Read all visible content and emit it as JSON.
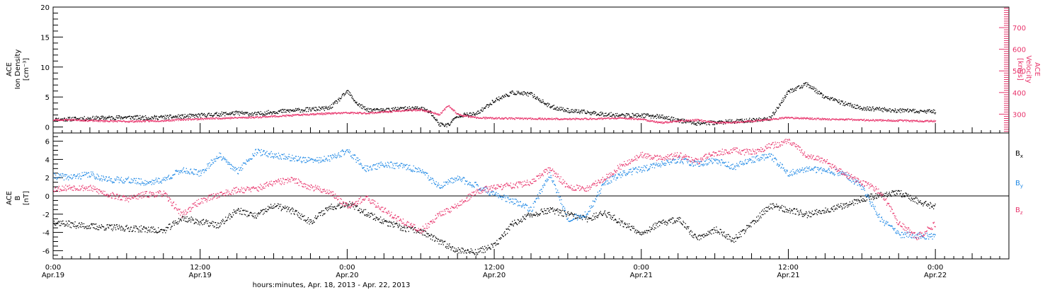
{
  "colors": {
    "axis": "#000000",
    "density": "#000000",
    "velocity": "#e8336b",
    "bx": "#000000",
    "by": "#1e88e5",
    "bz": "#e8336b"
  },
  "chart_data": [
    {
      "type": "scatter",
      "panel": "top",
      "ylabel_lines": [
        "ACE",
        "Ion Density",
        "[cm⁻³]"
      ],
      "ylim": [
        -1,
        20
      ],
      "yticks": [
        0,
        5,
        10,
        15,
        20
      ],
      "right_axis": {
        "label_lines": [
          "ACE",
          "Velocity",
          "[km/s]"
        ],
        "ylim": [
          213,
          795
        ],
        "yticks": [
          300,
          400,
          500,
          600,
          700
        ],
        "color": "#e8336b"
      },
      "series": [
        {
          "name": "Ion Density",
          "axis": "left",
          "color": "#000000",
          "x": [
            0,
            2,
            4,
            6,
            8,
            10,
            12,
            14,
            16,
            18,
            20,
            22,
            24,
            26,
            28,
            30,
            31,
            32,
            33,
            34,
            35,
            36,
            38,
            40,
            41,
            42,
            43,
            44,
            46,
            48,
            50,
            52,
            54,
            56,
            58,
            60,
            62,
            64,
            66,
            68,
            70,
            72,
            74,
            76,
            78,
            80,
            82,
            84,
            86,
            88,
            90,
            92,
            94,
            96
          ],
          "y": [
            1.3,
            1.4,
            1.5,
            1.6,
            1.7,
            1.6,
            1.7,
            1.8,
            2.0,
            2.2,
            2.4,
            2.2,
            2.6,
            2.8,
            3.0,
            3.2,
            4.5,
            6.0,
            4.0,
            3.0,
            2.8,
            2.9,
            3.1,
            3.2,
            2.5,
            0.5,
            0.4,
            2.0,
            2.2,
            4.5,
            5.8,
            5.5,
            3.5,
            2.8,
            2.5,
            2.2,
            2.0,
            2.0,
            1.8,
            1.2,
            0.7,
            0.8,
            1.0,
            1.2,
            1.5,
            6.0,
            7.2,
            5.0,
            4.0,
            3.2,
            3.0,
            2.8,
            2.7,
            2.6
          ]
        },
        {
          "name": "Velocity",
          "axis": "right",
          "color": "#e8336b",
          "x": [
            0,
            2,
            4,
            6,
            8,
            10,
            12,
            14,
            16,
            18,
            20,
            22,
            24,
            26,
            28,
            30,
            32,
            34,
            36,
            38,
            40,
            41,
            42,
            43,
            44,
            46,
            48,
            50,
            52,
            54,
            56,
            58,
            60,
            62,
            64,
            66,
            68,
            70,
            72,
            74,
            76,
            78,
            80,
            82,
            84,
            86,
            88,
            90,
            92,
            94,
            96
          ],
          "y": [
            275,
            276,
            272,
            270,
            268,
            270,
            272,
            277,
            280,
            283,
            285,
            288,
            292,
            296,
            302,
            305,
            308,
            306,
            312,
            318,
            322,
            312,
            300,
            342,
            300,
            285,
            283,
            282,
            281,
            280,
            279,
            280,
            282,
            283,
            279,
            262,
            270,
            275,
            262,
            264,
            270,
            278,
            286,
            282,
            279,
            277,
            275,
            273,
            272,
            270,
            270
          ]
        }
      ]
    },
    {
      "type": "scatter",
      "panel": "bottom",
      "ylabel_lines": [
        "ACE",
        "B",
        "[nT]"
      ],
      "ylim": [
        -6.9,
        6.9
      ],
      "yticks": [
        -6,
        -4,
        -2,
        0,
        2,
        4,
        6
      ],
      "legend": {
        "placement": "right",
        "entries": [
          {
            "base": "B",
            "sub": "x",
            "color": "#000000"
          },
          {
            "base": "B",
            "sub": "y",
            "color": "#1e88e5"
          },
          {
            "base": "B",
            "sub": "z",
            "color": "#e8336b"
          }
        ]
      },
      "series": [
        {
          "name": "Bx",
          "color": "#000000",
          "x": [
            0,
            2,
            4,
            6,
            8,
            10,
            12,
            14,
            16,
            18,
            20,
            22,
            24,
            26,
            28,
            30,
            32,
            34,
            36,
            38,
            40,
            42,
            44,
            46,
            48,
            50,
            52,
            54,
            56,
            58,
            60,
            62,
            64,
            66,
            68,
            70,
            72,
            74,
            76,
            78,
            80,
            82,
            84,
            86,
            88,
            90,
            92,
            94,
            96
          ],
          "y": [
            -2.8,
            -3.1,
            -3.3,
            -3.4,
            -3.5,
            -3.6,
            -3.8,
            -2.4,
            -2.8,
            -3.2,
            -1.5,
            -2.2,
            -1.0,
            -1.6,
            -2.8,
            -1.2,
            -0.8,
            -1.8,
            -2.8,
            -3.5,
            -3.8,
            -5.0,
            -5.9,
            -6.1,
            -5.4,
            -3.0,
            -2.0,
            -1.5,
            -2.0,
            -2.5,
            -1.8,
            -3.0,
            -4.0,
            -3.0,
            -2.5,
            -4.6,
            -3.6,
            -4.8,
            -3.0,
            -1.0,
            -1.5,
            -2.0,
            -1.5,
            -1.0,
            -0.3,
            0.2,
            0.4,
            -0.5,
            -1.2
          ]
        },
        {
          "name": "By",
          "color": "#1e88e5",
          "x": [
            0,
            2,
            4,
            6,
            8,
            10,
            12,
            14,
            16,
            18,
            20,
            22,
            24,
            26,
            28,
            30,
            32,
            34,
            36,
            38,
            40,
            42,
            44,
            46,
            48,
            50,
            52,
            54,
            56,
            58,
            60,
            62,
            64,
            66,
            68,
            70,
            72,
            74,
            76,
            78,
            80,
            82,
            84,
            86,
            88,
            90,
            92,
            94,
            96
          ],
          "y": [
            2.2,
            2.1,
            2.4,
            1.8,
            1.8,
            1.5,
            1.8,
            2.9,
            2.5,
            4.5,
            2.7,
            4.9,
            4.5,
            4.2,
            3.9,
            4.1,
            5.0,
            3.0,
            3.5,
            3.3,
            2.8,
            1.0,
            2.0,
            1.2,
            0.2,
            -0.5,
            -1.5,
            2.5,
            -2.5,
            -2.0,
            1.5,
            2.5,
            3.0,
            3.5,
            4.0,
            3.5,
            4.0,
            3.2,
            4.0,
            4.5,
            2.5,
            3.0,
            2.8,
            2.5,
            1.0,
            -2.5,
            -4.2,
            -4.3,
            -4.4
          ]
        },
        {
          "name": "Bz",
          "color": "#e8336b",
          "x": [
            0,
            2,
            4,
            6,
            8,
            10,
            12,
            14,
            16,
            18,
            20,
            22,
            24,
            26,
            28,
            30,
            32,
            34,
            36,
            38,
            40,
            42,
            44,
            46,
            48,
            50,
            52,
            54,
            56,
            58,
            60,
            62,
            64,
            66,
            68,
            70,
            72,
            74,
            76,
            78,
            80,
            82,
            84,
            86,
            88,
            90,
            92,
            94,
            96
          ],
          "y": [
            0.8,
            1.0,
            0.9,
            0.2,
            -0.3,
            0.2,
            0.3,
            -2.0,
            -0.5,
            0.2,
            0.7,
            0.8,
            1.5,
            1.8,
            1.0,
            0.5,
            -1.0,
            -0.2,
            -1.5,
            -2.8,
            -3.8,
            -2.0,
            -1.0,
            0.5,
            1.0,
            1.2,
            1.5,
            3.0,
            1.0,
            0.8,
            2.0,
            3.5,
            4.5,
            4.2,
            4.5,
            3.8,
            4.8,
            5.0,
            4.8,
            5.5,
            6.0,
            4.5,
            3.8,
            2.5,
            1.5,
            0.5,
            -3.0,
            -4.5,
            -3.0
          ]
        }
      ]
    }
  ],
  "x_axis": {
    "range_hours": [
      0,
      104
    ],
    "ticks": [
      {
        "h": 0,
        "time": "0:00",
        "date": "Apr.19"
      },
      {
        "h": 16,
        "time": "12:00",
        "date": "Apr.19"
      },
      {
        "h": 32,
        "time": "0:00",
        "date": "Apr.20"
      },
      {
        "h": 48,
        "time": "12:00",
        "date": "Apr.20"
      },
      {
        "h": 64,
        "time": "0:00",
        "date": "Apr.21"
      },
      {
        "h": 80,
        "time": "12:00",
        "date": "Apr.21"
      },
      {
        "h": 96,
        "time": "0:00",
        "date": "Apr.22"
      }
    ],
    "xlabel": "hours:minutes, Apr. 18, 2013 - Apr. 22, 2013"
  }
}
